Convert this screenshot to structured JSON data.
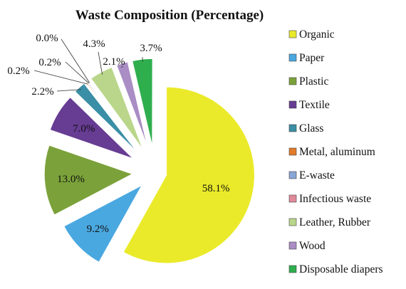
{
  "chart_data": {
    "type": "pie",
    "title": "Waste Composition (Percentage)",
    "slices": [
      {
        "label": "Organic",
        "value": 58.1,
        "display": "58.1%",
        "color": "#eaea2a",
        "exploded": true
      },
      {
        "label": "Paper",
        "value": 9.2,
        "display": "9.2%",
        "color": "#4aa8e0",
        "exploded": true
      },
      {
        "label": "Plastic",
        "value": 13.0,
        "display": "13.0%",
        "color": "#7ba23a",
        "exploded": true
      },
      {
        "label": "Textile",
        "value": 7.0,
        "display": "7.0%",
        "color": "#673c93",
        "exploded": true
      },
      {
        "label": "Glass",
        "value": 2.2,
        "display": "2.2%",
        "color": "#3a8ea5",
        "exploded": true
      },
      {
        "label": "Metal, aluminum",
        "value": 0.2,
        "display": "0.2%",
        "color": "#e07b2a",
        "exploded": true
      },
      {
        "label": "E-waste",
        "value": 0.2,
        "display": "0.2%",
        "color": "#8aa6d6",
        "exploded": true
      },
      {
        "label": "Infectious waste",
        "value": 0.0,
        "display": "0.0%",
        "color": "#e08a9a",
        "exploded": true
      },
      {
        "label": "Leather, Rubber",
        "value": 4.3,
        "display": "4.3%",
        "color": "#b9d68a",
        "exploded": true
      },
      {
        "label": "Wood",
        "value": 2.1,
        "display": "2.1%",
        "color": "#a98dc4",
        "exploded": true
      },
      {
        "label": "Disposable diapers",
        "value": 3.7,
        "display": "3.7%",
        "color": "#2fae4e",
        "exploded": true
      }
    ],
    "legend_position": "right"
  }
}
